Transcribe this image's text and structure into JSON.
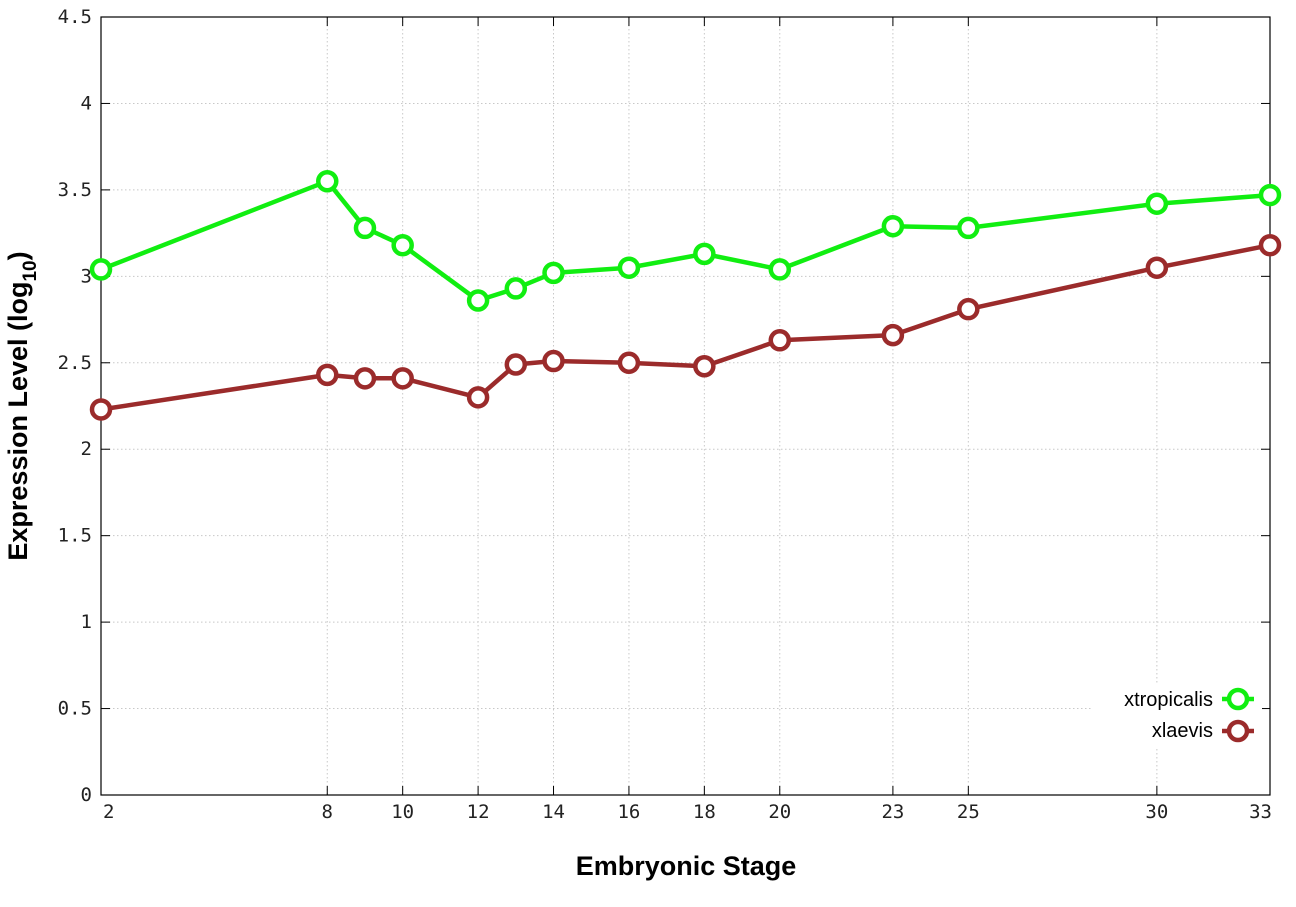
{
  "chart_data": {
    "type": "line",
    "xlabel": "Embryonic Stage",
    "ylabel_main": "Expression Level (log",
    "ylabel_sub": "10",
    "ylabel_close": ")",
    "x_ticks": [
      2,
      8,
      10,
      12,
      14,
      16,
      18,
      20,
      23,
      25,
      30,
      33
    ],
    "y_ticks": [
      "0",
      "0.5",
      "1",
      "1.5",
      "2",
      "2.5",
      "3",
      "3.5",
      "4",
      "4.5"
    ],
    "xlim": [
      2,
      33
    ],
    "ylim": [
      0,
      4.5
    ],
    "grid": true,
    "legend_position": "bottom-right",
    "x": [
      2,
      8,
      9,
      10,
      12,
      13,
      14,
      16,
      18,
      20,
      23,
      25,
      30,
      33
    ],
    "series": [
      {
        "name": "xtropicalis",
        "color": "#11ee11",
        "values": [
          3.04,
          3.55,
          3.28,
          3.18,
          2.86,
          2.93,
          3.02,
          3.05,
          3.13,
          3.04,
          3.29,
          3.28,
          3.42,
          3.47
        ]
      },
      {
        "name": "xlaevis",
        "color": "#9b2b2b",
        "values": [
          2.23,
          2.43,
          2.41,
          2.41,
          2.3,
          2.49,
          2.51,
          2.5,
          2.48,
          2.63,
          2.66,
          2.81,
          3.05,
          3.18
        ]
      }
    ]
  }
}
